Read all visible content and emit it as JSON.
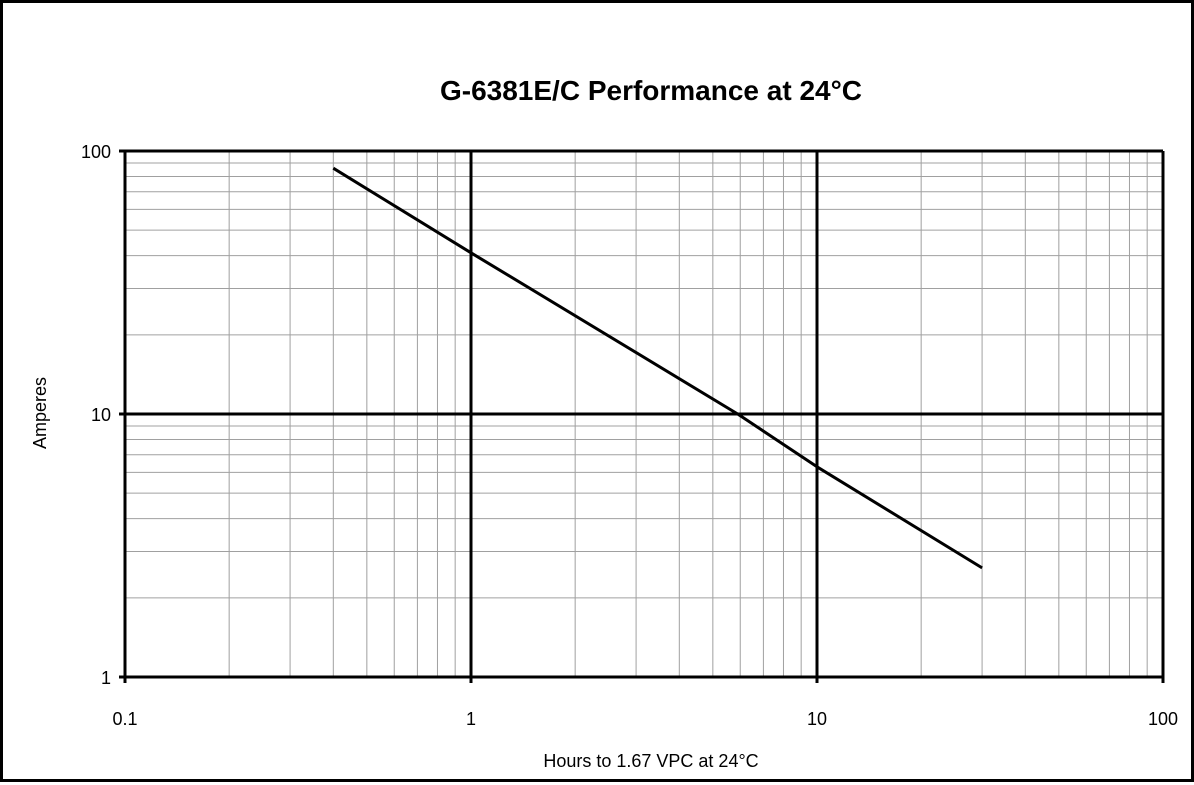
{
  "chart_data": {
    "type": "line",
    "title": "G-6381E/C Performance at 24°C",
    "xlabel": "Hours to 1.67 VPC at 24°C",
    "ylabel": "Amperes",
    "x_scale": "log",
    "y_scale": "log",
    "xlim": [
      0.1,
      100
    ],
    "ylim": [
      1,
      100
    ],
    "x_ticks": [
      "0.1",
      "1",
      "10",
      "100"
    ],
    "y_ticks": [
      "1",
      "10",
      "100"
    ],
    "grid": true,
    "legend": "none",
    "series": [
      {
        "x": [
          0.4,
          1,
          5.9,
          10,
          30
        ],
        "y": [
          86,
          41,
          10,
          6.3,
          2.6
        ]
      }
    ],
    "colors": {
      "line": "#000000",
      "major_grid": "#000000",
      "minor_grid": "#a0a0a0"
    }
  }
}
